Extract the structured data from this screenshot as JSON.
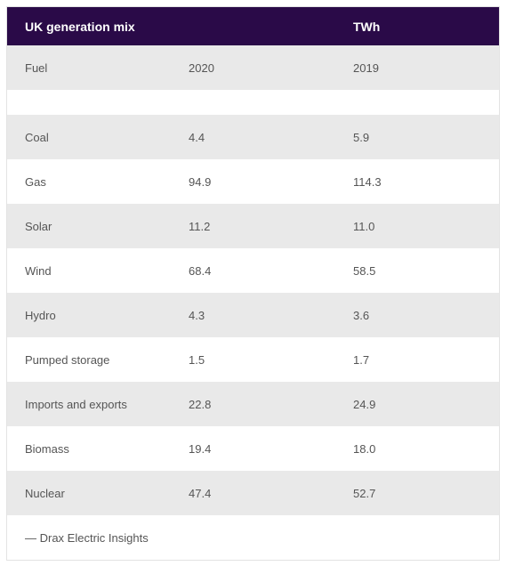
{
  "table": {
    "header": {
      "title": "UK generation mix",
      "col2": "",
      "unit": "TWh"
    },
    "subheader": {
      "fuel": "Fuel",
      "year_a": "2020",
      "year_b": "2019"
    },
    "rows": [
      {
        "fuel": "Coal",
        "v2020": "4.4",
        "v2019": "5.9"
      },
      {
        "fuel": "Gas",
        "v2020": "94.9",
        "v2019": "114.3"
      },
      {
        "fuel": "Solar",
        "v2020": "11.2",
        "v2019": "11.0"
      },
      {
        "fuel": "Wind",
        "v2020": "68.4",
        "v2019": "58.5"
      },
      {
        "fuel": "Hydro",
        "v2020": "4.3",
        "v2019": "3.6"
      },
      {
        "fuel": "Pumped storage",
        "v2020": "1.5",
        "v2019": "1.7"
      },
      {
        "fuel": "Imports and exports",
        "v2020": "22.8",
        "v2019": "24.9"
      },
      {
        "fuel": "Biomass",
        "v2020": "19.4",
        "v2019": "18.0"
      },
      {
        "fuel": "Nuclear",
        "v2020": "47.4",
        "v2019": "52.7"
      }
    ],
    "source": "— Drax Electric Insights"
  },
  "colors": {
    "header_bg": "#2a0a48",
    "shaded_row": "#e9e9e9"
  }
}
